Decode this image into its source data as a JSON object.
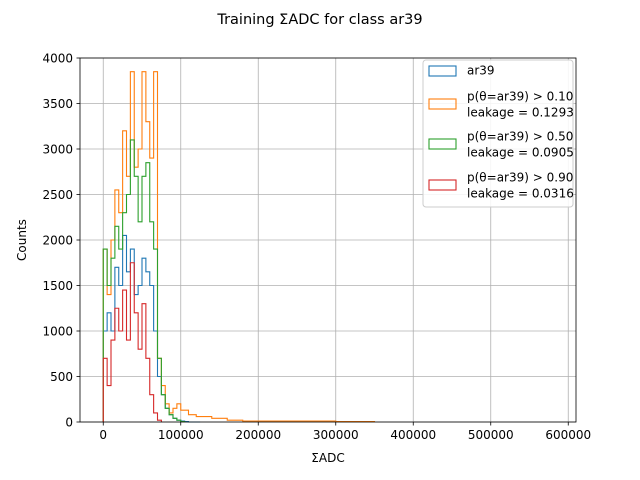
{
  "chart_data": {
    "type": "histogram",
    "title": "Training ΣADC for class ar39",
    "xlabel": "ΣADC",
    "ylabel": "Counts",
    "xlim": [
      -30000,
      610000
    ],
    "ylim": [
      0,
      4000
    ],
    "xticks": [
      0,
      100000,
      200000,
      300000,
      400000,
      500000,
      600000
    ],
    "xtick_labels": [
      "0",
      "100000",
      "200000",
      "300000",
      "400000",
      "500000",
      "600000"
    ],
    "yticks": [
      0,
      500,
      1000,
      1500,
      2000,
      2500,
      3000,
      3500,
      4000
    ],
    "ytick_labels": [
      "0",
      "500",
      "1000",
      "1500",
      "2000",
      "2500",
      "3000",
      "3500",
      "4000"
    ],
    "grid": true,
    "legend_position": "top-right",
    "series": [
      {
        "name": "ar39",
        "color": "#1f77b4",
        "x": [
          0,
          5000,
          10000,
          15000,
          20000,
          25000,
          30000,
          35000,
          40000,
          45000,
          50000,
          55000,
          60000,
          65000,
          70000,
          75000,
          80000,
          85000,
          90000,
          95000,
          100000,
          105000,
          110000,
          115000,
          120000
        ],
        "y": [
          1000,
          1200,
          1000,
          1700,
          1500,
          2050,
          1650,
          1900,
          1400,
          1500,
          1800,
          1650,
          1500,
          1000,
          500,
          300,
          150,
          80,
          40,
          20,
          10,
          5,
          0,
          0,
          0
        ]
      },
      {
        "name": "p(θ=ar39) > 0.10\nleakage = 0.1293",
        "color": "#ff7f0e",
        "x": [
          0,
          5000,
          10000,
          15000,
          20000,
          25000,
          30000,
          35000,
          40000,
          45000,
          50000,
          55000,
          60000,
          65000,
          70000,
          75000,
          80000,
          85000,
          90000,
          95000,
          100000,
          110000,
          120000,
          140000,
          160000,
          180000,
          200000,
          250000,
          300000
        ],
        "y": [
          1900,
          1400,
          2000,
          2550,
          2300,
          3200,
          2700,
          3850,
          2800,
          3000,
          3850,
          3300,
          2900,
          3850,
          700,
          400,
          200,
          100,
          150,
          200,
          130,
          80,
          60,
          40,
          20,
          10,
          10,
          10,
          5
        ]
      },
      {
        "name": "p(θ=ar39) > 0.50\nleakage = 0.0905",
        "color": "#2ca02c",
        "x": [
          0,
          5000,
          10000,
          15000,
          20000,
          25000,
          30000,
          35000,
          40000,
          45000,
          50000,
          55000,
          60000,
          65000,
          70000,
          75000,
          80000,
          85000,
          90000,
          95000,
          100000
        ],
        "y": [
          1900,
          1500,
          1800,
          2150,
          1900,
          2300,
          2500,
          3100,
          2700,
          2200,
          2700,
          2850,
          2200,
          1900,
          700,
          300,
          150,
          80,
          40,
          20,
          5
        ]
      },
      {
        "name": "p(θ=ar39) > 0.90\nleakage = 0.0316",
        "color": "#d62728",
        "x": [
          0,
          5000,
          10000,
          15000,
          20000,
          25000,
          30000,
          35000,
          40000,
          45000,
          50000,
          55000,
          60000,
          65000,
          70000
        ],
        "y": [
          700,
          400,
          900,
          1250,
          1000,
          1450,
          900,
          1750,
          1200,
          800,
          1300,
          700,
          300,
          100,
          20
        ]
      }
    ]
  }
}
